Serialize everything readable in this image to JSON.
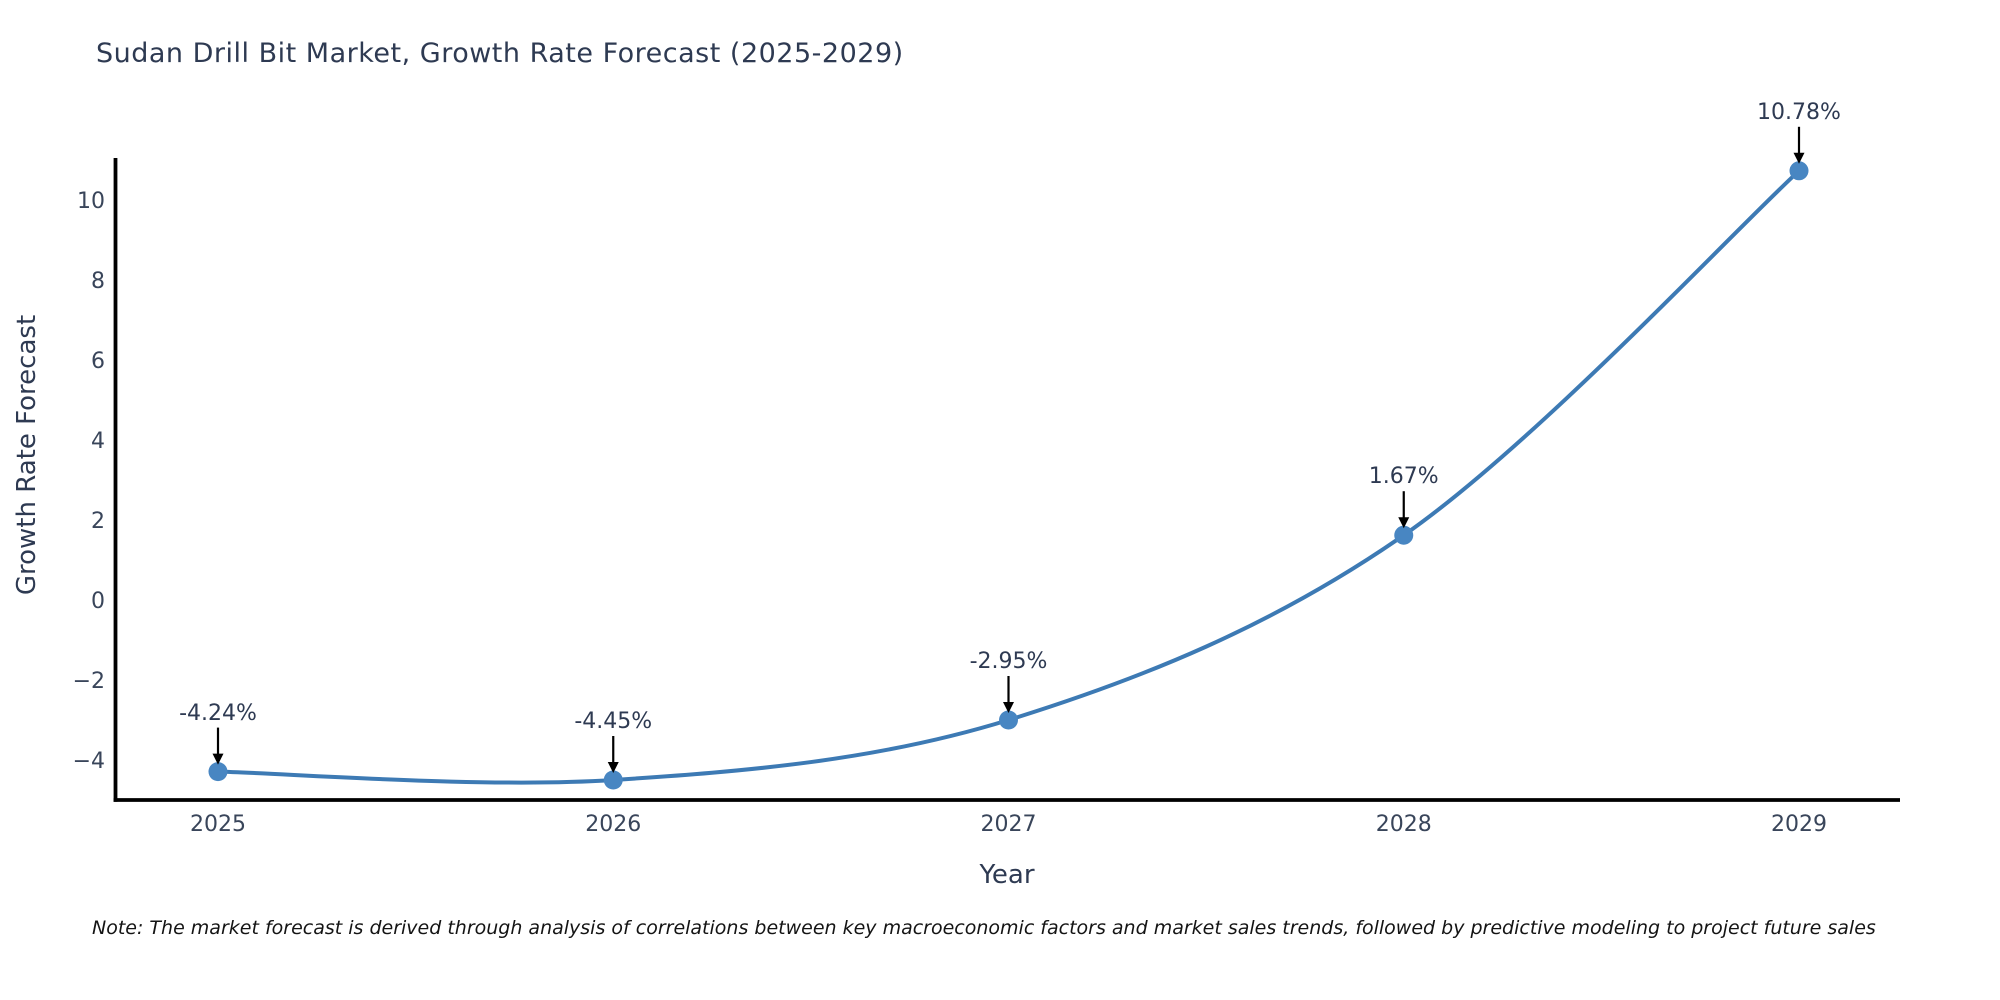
{
  "title": "Sudan Drill Bit Market, Growth Rate Forecast (2025-2029)",
  "note": "Note: The market forecast is derived through analysis of correlations between key macroeconomic factors and market sales trends, followed by predictive modeling to project future sales",
  "chart_data": {
    "type": "line",
    "title": "Sudan Drill Bit Market, Growth Rate Forecast (2025-2029)",
    "xlabel": "Year",
    "ylabel": "Growth Rate Forecast",
    "x": [
      2025,
      2026,
      2027,
      2028,
      2029
    ],
    "series": [
      {
        "name": "Growth Rate Forecast",
        "values": [
          -4.24,
          -4.45,
          -2.95,
          1.67,
          10.78
        ],
        "point_labels": [
          "-4.24%",
          "-4.45%",
          "-2.95%",
          "1.67%",
          "10.78%"
        ]
      }
    ],
    "xtick_labels": [
      "2025",
      "2026",
      "2027",
      "2028",
      "2029"
    ],
    "ytick_values": [
      -4,
      -2,
      0,
      2,
      4,
      6,
      8,
      10
    ],
    "ytick_labels": [
      "−4",
      "−2",
      "0",
      "2",
      "4",
      "6",
      "8",
      "10"
    ],
    "ylim": [
      -4.95,
      11.1
    ],
    "grid": false,
    "legend": null,
    "smooth_curve": true,
    "line_color": "#3d7ab4",
    "marker_color": "#4886c2",
    "arrow_color": "#000000",
    "axis_color": "#000000",
    "text_color": "#2e3a52"
  }
}
